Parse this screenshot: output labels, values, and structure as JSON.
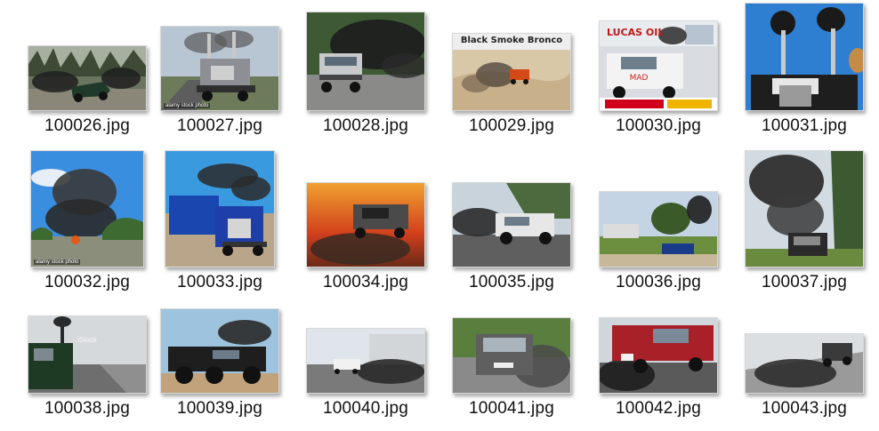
{
  "window": {
    "view": "large-icons"
  },
  "items": [
    {
      "label": "100026.jpg",
      "selected": false
    },
    {
      "label": "100027.jpg",
      "watermark": "alamy stock photo",
      "selected": false
    },
    {
      "label": "100028.jpg",
      "selected": false
    },
    {
      "label": "100029.jpg",
      "title": "Black Smoke Bronco",
      "selected": false
    },
    {
      "label": "100030.jpg",
      "brand": "LUCAS OIL",
      "selected": false
    },
    {
      "label": "100031.jpg",
      "selected": false
    },
    {
      "label": "100032.jpg",
      "watermark": "alamy stock photo",
      "selected": false
    },
    {
      "label": "100033.jpg",
      "selected": false
    },
    {
      "label": "100034.jpg",
      "selected": false
    },
    {
      "label": "100035.jpg",
      "selected": false
    },
    {
      "label": "100036.jpg",
      "selected": false
    },
    {
      "label": "100037.jpg",
      "selected": false
    },
    {
      "label": "100038.jpg",
      "watermark": "iStock",
      "selected": false
    },
    {
      "label": "100039.jpg",
      "selected": false
    },
    {
      "label": "100040.jpg",
      "selected": false
    },
    {
      "label": "100041.jpg",
      "selected": false
    },
    {
      "label": "100042.jpg",
      "selected": false
    },
    {
      "label": "100043.jpg",
      "selected": false
    }
  ]
}
